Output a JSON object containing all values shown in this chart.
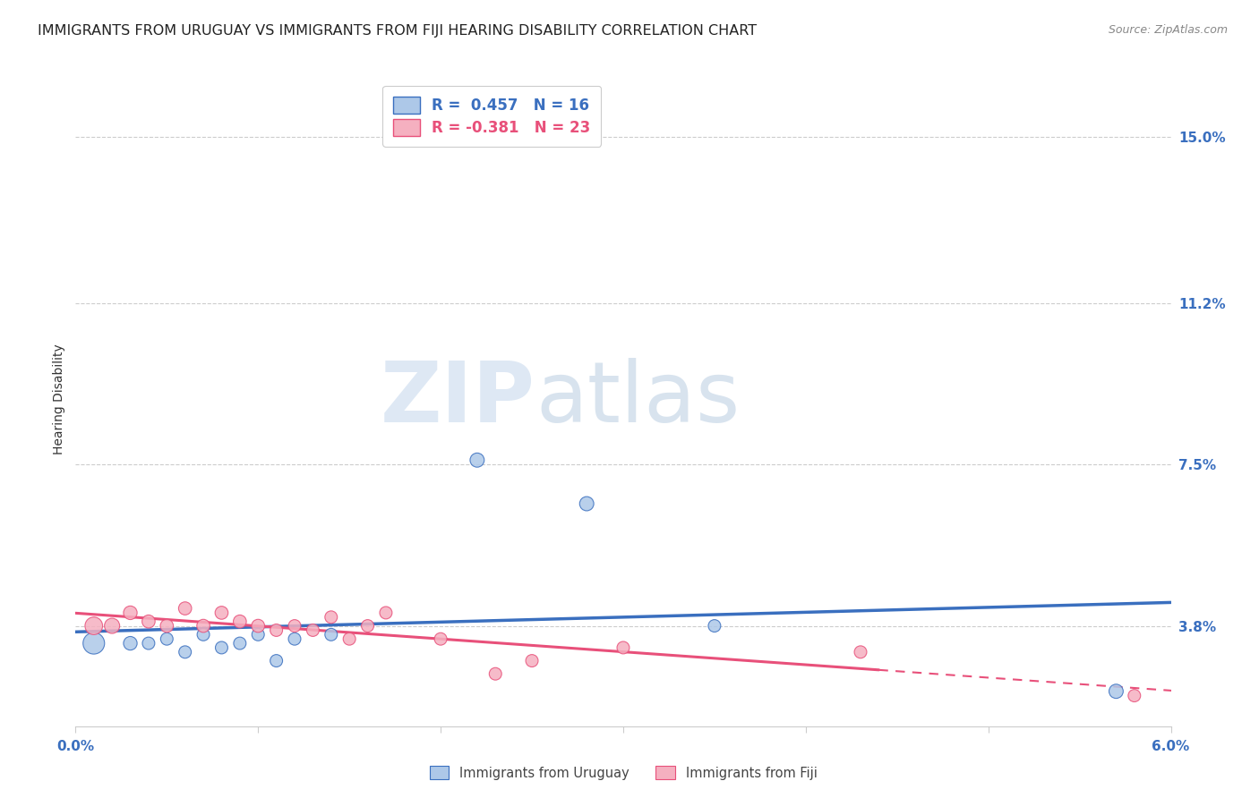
{
  "title": "IMMIGRANTS FROM URUGUAY VS IMMIGRANTS FROM FIJI HEARING DISABILITY CORRELATION CHART",
  "source": "Source: ZipAtlas.com",
  "ylabel": "Hearing Disability",
  "ytick_labels": [
    "3.8%",
    "7.5%",
    "11.2%",
    "15.0%"
  ],
  "ytick_values": [
    0.038,
    0.075,
    0.112,
    0.15
  ],
  "xlim": [
    0.0,
    0.06
  ],
  "ylim": [
    0.015,
    0.165
  ],
  "legend_uruguay": "R =  0.457   N = 16",
  "legend_fiji": "R = -0.381   N = 23",
  "legend_label_uruguay": "Immigrants from Uruguay",
  "legend_label_fiji": "Immigrants from Fiji",
  "watermark_zip": "ZIP",
  "watermark_atlas": "atlas",
  "uruguay_color": "#adc8e8",
  "fiji_color": "#f5b0c0",
  "uruguay_line_color": "#3a6fbf",
  "fiji_line_color": "#e8507a",
  "fiji_line_solid_end": 0.044,
  "uruguay_scatter_x": [
    0.001,
    0.003,
    0.004,
    0.005,
    0.006,
    0.007,
    0.008,
    0.009,
    0.01,
    0.011,
    0.012,
    0.014,
    0.022,
    0.028,
    0.035,
    0.057
  ],
  "uruguay_scatter_y": [
    0.034,
    0.034,
    0.034,
    0.035,
    0.032,
    0.036,
    0.033,
    0.034,
    0.036,
    0.03,
    0.035,
    0.036,
    0.076,
    0.066,
    0.038,
    0.023
  ],
  "fiji_scatter_x": [
    0.001,
    0.002,
    0.003,
    0.004,
    0.005,
    0.006,
    0.007,
    0.008,
    0.009,
    0.01,
    0.011,
    0.012,
    0.013,
    0.014,
    0.015,
    0.016,
    0.017,
    0.02,
    0.023,
    0.025,
    0.03,
    0.043,
    0.058
  ],
  "fiji_scatter_y": [
    0.038,
    0.038,
    0.041,
    0.039,
    0.038,
    0.042,
    0.038,
    0.041,
    0.039,
    0.038,
    0.037,
    0.038,
    0.037,
    0.04,
    0.035,
    0.038,
    0.041,
    0.035,
    0.027,
    0.03,
    0.033,
    0.032,
    0.022
  ],
  "uruguay_sizes": [
    300,
    120,
    100,
    100,
    100,
    100,
    100,
    100,
    100,
    100,
    100,
    100,
    130,
    130,
    100,
    130
  ],
  "fiji_sizes": [
    200,
    150,
    120,
    110,
    110,
    110,
    110,
    110,
    110,
    110,
    100,
    100,
    100,
    100,
    100,
    100,
    100,
    100,
    100,
    100,
    100,
    100,
    100
  ],
  "grid_color": "#cccccc",
  "background_color": "#ffffff",
  "title_fontsize": 11.5,
  "source_fontsize": 9,
  "axis_label_fontsize": 10,
  "tick_fontsize": 11
}
